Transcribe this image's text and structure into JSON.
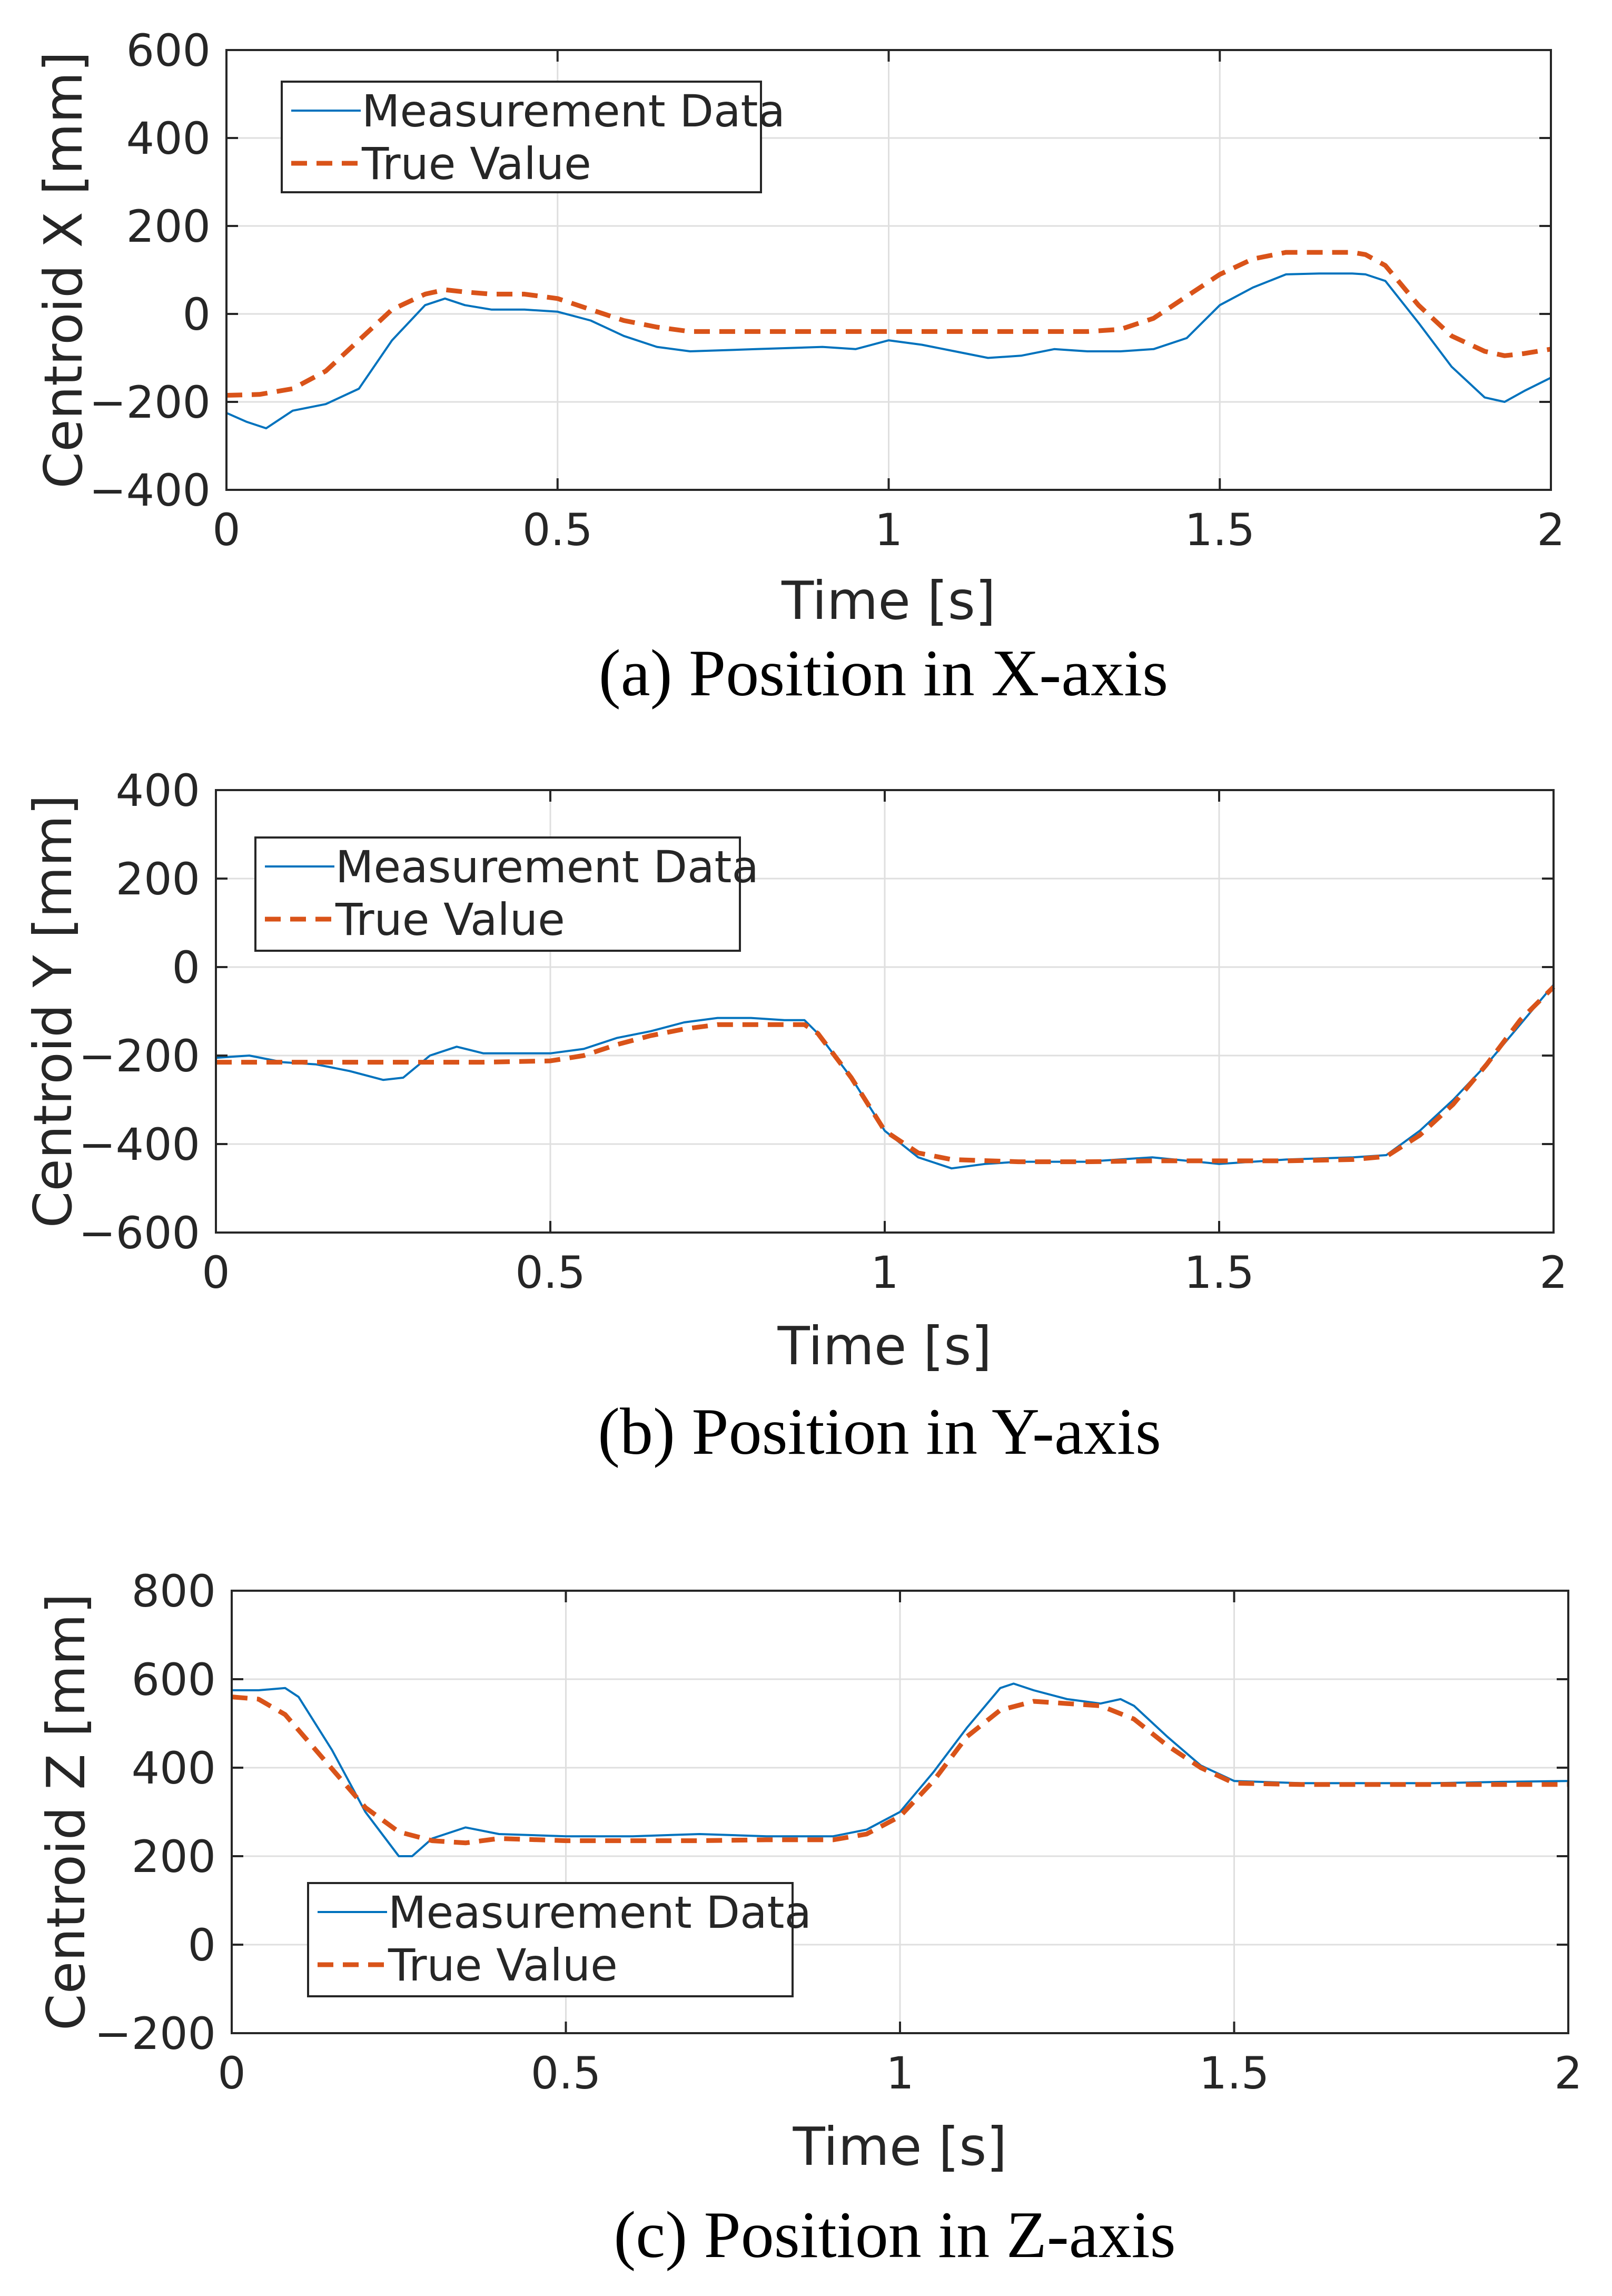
{
  "figure": {
    "colors": {
      "measurement": "#0072BD",
      "true_value": "#D95319",
      "axis": "#262626",
      "grid": "#DFDFDF"
    }
  },
  "chart_data": [
    {
      "id": "x",
      "type": "line",
      "caption": "(a) Position in X-axis",
      "xlabel": "Time [s]",
      "ylabel": "Centroid X [mm]",
      "xlim": [
        0,
        2
      ],
      "ylim": [
        -400,
        600
      ],
      "xticks": [
        0,
        0.5,
        1,
        1.5,
        2
      ],
      "xtick_labels": [
        "0",
        "0.5",
        "1",
        "1.5",
        "2"
      ],
      "yticks": [
        -400,
        -200,
        0,
        200,
        400,
        600
      ],
      "ytick_labels": [
        "−400",
        "−200",
        "0",
        "200",
        "400",
        "600"
      ],
      "grid": true,
      "legend_position": "top-left",
      "series": [
        {
          "name": "Measurement Data",
          "style": "solid",
          "x": [
            0,
            0.03,
            0.06,
            0.1,
            0.15,
            0.2,
            0.25,
            0.3,
            0.33,
            0.36,
            0.4,
            0.45,
            0.5,
            0.55,
            0.6,
            0.65,
            0.7,
            0.8,
            0.9,
            0.95,
            1.0,
            1.05,
            1.1,
            1.15,
            1.2,
            1.25,
            1.3,
            1.35,
            1.4,
            1.45,
            1.5,
            1.55,
            1.6,
            1.65,
            1.7,
            1.72,
            1.75,
            1.8,
            1.85,
            1.9,
            1.93,
            1.96,
            2.0
          ],
          "y": [
            -225,
            -245,
            -260,
            -220,
            -205,
            -170,
            -60,
            20,
            35,
            20,
            10,
            10,
            5,
            -15,
            -50,
            -75,
            -85,
            -80,
            -75,
            -80,
            -60,
            -70,
            -85,
            -100,
            -95,
            -80,
            -85,
            -85,
            -80,
            -55,
            20,
            60,
            90,
            92,
            92,
            90,
            75,
            -20,
            -120,
            -190,
            -200,
            -175,
            -145
          ]
        },
        {
          "name": "True Value",
          "style": "dashed",
          "x": [
            0,
            0.05,
            0.1,
            0.15,
            0.2,
            0.25,
            0.3,
            0.33,
            0.36,
            0.4,
            0.45,
            0.5,
            0.55,
            0.6,
            0.65,
            0.7,
            0.8,
            0.9,
            1.0,
            1.1,
            1.2,
            1.3,
            1.35,
            1.4,
            1.45,
            1.5,
            1.55,
            1.6,
            1.65,
            1.7,
            1.72,
            1.75,
            1.8,
            1.85,
            1.9,
            1.93,
            1.96,
            2.0
          ],
          "y": [
            -185,
            -183,
            -170,
            -130,
            -60,
            10,
            45,
            55,
            50,
            45,
            45,
            35,
            10,
            -15,
            -30,
            -40,
            -40,
            -40,
            -40,
            -40,
            -40,
            -40,
            -35,
            -10,
            40,
            90,
            125,
            140,
            140,
            140,
            135,
            110,
            20,
            -50,
            -85,
            -95,
            -90,
            -80
          ]
        }
      ]
    },
    {
      "id": "y",
      "type": "line",
      "caption": "(b) Position in Y-axis",
      "xlabel": "Time [s]",
      "ylabel": "Centroid Y [mm]",
      "xlim": [
        0,
        2
      ],
      "ylim": [
        -600,
        400
      ],
      "xticks": [
        0,
        0.5,
        1,
        1.5,
        2
      ],
      "xtick_labels": [
        "0",
        "0.5",
        "1",
        "1.5",
        "2"
      ],
      "yticks": [
        -600,
        -400,
        -200,
        0,
        200,
        400
      ],
      "ytick_labels": [
        "−600",
        "−400",
        "−200",
        "0",
        "200",
        "400"
      ],
      "grid": true,
      "legend_position": "top-left",
      "series": [
        {
          "name": "Measurement Data",
          "style": "solid",
          "x": [
            0,
            0.05,
            0.1,
            0.15,
            0.2,
            0.25,
            0.28,
            0.32,
            0.36,
            0.4,
            0.45,
            0.5,
            0.55,
            0.6,
            0.65,
            0.7,
            0.75,
            0.8,
            0.85,
            0.88,
            0.9,
            0.95,
            1.0,
            1.05,
            1.1,
            1.15,
            1.2,
            1.3,
            1.4,
            1.5,
            1.6,
            1.7,
            1.75,
            1.8,
            1.85,
            1.9,
            1.95,
            2.0
          ],
          "y": [
            -205,
            -200,
            -215,
            -220,
            -235,
            -255,
            -250,
            -200,
            -180,
            -195,
            -195,
            -195,
            -185,
            -160,
            -145,
            -125,
            -115,
            -115,
            -120,
            -120,
            -150,
            -250,
            -370,
            -430,
            -455,
            -445,
            -440,
            -440,
            -430,
            -445,
            -435,
            -430,
            -425,
            -370,
            -300,
            -220,
            -130,
            -40
          ]
        },
        {
          "name": "True Value",
          "style": "dashed",
          "x": [
            0,
            0.1,
            0.2,
            0.3,
            0.4,
            0.5,
            0.55,
            0.6,
            0.65,
            0.7,
            0.75,
            0.8,
            0.85,
            0.88,
            0.9,
            0.95,
            1.0,
            1.05,
            1.1,
            1.2,
            1.3,
            1.4,
            1.5,
            1.6,
            1.7,
            1.75,
            1.8,
            1.85,
            1.9,
            1.95,
            2.0
          ],
          "y": [
            -215,
            -215,
            -215,
            -215,
            -215,
            -212,
            -200,
            -175,
            -155,
            -140,
            -130,
            -130,
            -130,
            -130,
            -150,
            -250,
            -370,
            -420,
            -435,
            -440,
            -440,
            -438,
            -438,
            -438,
            -435,
            -428,
            -380,
            -310,
            -220,
            -120,
            -45
          ]
        }
      ]
    },
    {
      "id": "z",
      "type": "line",
      "caption": "(c) Position in Z-axis",
      "xlabel": "Time [s]",
      "ylabel": "Centroid Z [mm]",
      "xlim": [
        0,
        2
      ],
      "ylim": [
        -200,
        800
      ],
      "xticks": [
        0,
        0.5,
        1,
        1.5,
        2
      ],
      "xtick_labels": [
        "0",
        "0.5",
        "1",
        "1.5",
        "2"
      ],
      "yticks": [
        -200,
        0,
        200,
        400,
        600,
        800
      ],
      "ytick_labels": [
        "−200",
        "0",
        "200",
        "400",
        "600",
        "800"
      ],
      "grid": true,
      "legend_position": "bottom-left",
      "series": [
        {
          "name": "Measurement Data",
          "style": "solid",
          "x": [
            0,
            0.04,
            0.08,
            0.1,
            0.15,
            0.2,
            0.25,
            0.27,
            0.3,
            0.35,
            0.4,
            0.5,
            0.6,
            0.7,
            0.8,
            0.9,
            0.95,
            1.0,
            1.05,
            1.1,
            1.15,
            1.17,
            1.2,
            1.25,
            1.3,
            1.33,
            1.35,
            1.4,
            1.45,
            1.5,
            1.6,
            1.7,
            1.8,
            1.9,
            2.0
          ],
          "y": [
            575,
            575,
            580,
            560,
            440,
            300,
            200,
            200,
            240,
            265,
            250,
            245,
            245,
            250,
            245,
            245,
            260,
            300,
            390,
            490,
            580,
            590,
            575,
            555,
            545,
            555,
            540,
            470,
            405,
            370,
            365,
            365,
            365,
            368,
            370
          ]
        },
        {
          "name": "True Value",
          "style": "dashed",
          "x": [
            0,
            0.04,
            0.08,
            0.12,
            0.16,
            0.2,
            0.25,
            0.3,
            0.35,
            0.4,
            0.5,
            0.6,
            0.7,
            0.8,
            0.9,
            0.95,
            1.0,
            1.05,
            1.1,
            1.15,
            1.2,
            1.25,
            1.3,
            1.35,
            1.4,
            1.45,
            1.5,
            1.6,
            1.7,
            1.8,
            1.9,
            2.0
          ],
          "y": [
            560,
            555,
            520,
            450,
            380,
            310,
            255,
            235,
            230,
            240,
            235,
            235,
            235,
            237,
            237,
            250,
            290,
            370,
            470,
            530,
            550,
            545,
            540,
            510,
            450,
            400,
            365,
            362,
            362,
            362,
            362,
            362
          ]
        }
      ]
    }
  ]
}
